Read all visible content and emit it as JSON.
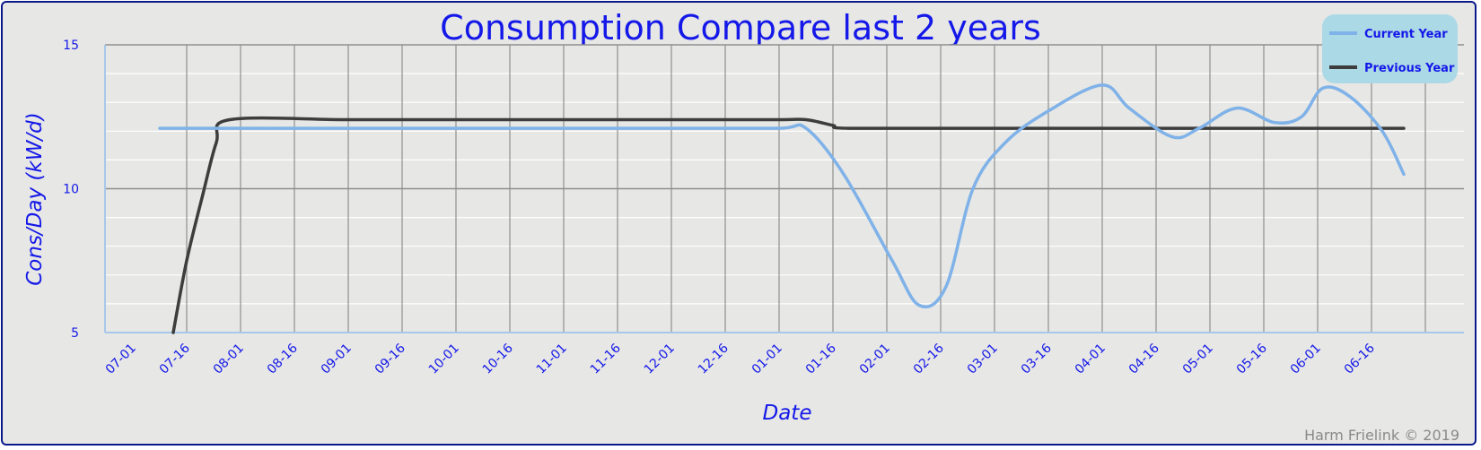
{
  "chart_data": {
    "type": "line",
    "title": "Consumption Compare last 2 years",
    "xlabel": "Date",
    "ylabel": "Cons/Day (kW/d)",
    "credit": "Harm Frielink © 2019",
    "ylim": [
      5,
      15
    ],
    "yticks": [
      5,
      10,
      15
    ],
    "xlim": [
      0,
      24.0
    ],
    "xticks": [
      "07-01",
      "07-16",
      "08-01",
      "08-16",
      "09-01",
      "09-16",
      "10-01",
      "10-16",
      "11-01",
      "11-16",
      "12-01",
      "12-16",
      "01-01",
      "01-16",
      "02-01",
      "02-16",
      "03-01",
      "03-16",
      "04-01",
      "04-16",
      "05-01",
      "05-16",
      "06-01",
      "06-16"
    ],
    "grid": true,
    "legend": "top-right",
    "series": [
      {
        "name": "Current Year",
        "color": "#7fb2e8",
        "x": [
          0.5,
          2,
          4,
          6,
          8,
          10,
          12,
          12.5,
          13.2,
          14.1,
          14.6,
          15.1,
          15.6,
          16.2,
          17.0,
          18.0,
          18.5,
          19.3,
          19.8,
          20.5,
          21.2,
          21.7,
          22.1,
          22.6,
          23.2,
          23.6
        ],
        "y": [
          12.1,
          12.1,
          12.1,
          12.1,
          12.1,
          12.1,
          12.1,
          12.1,
          10.5,
          7.5,
          5.95,
          6.6,
          10.0,
          11.6,
          12.7,
          13.6,
          12.8,
          11.8,
          12.1,
          12.8,
          12.3,
          12.5,
          13.5,
          13.2,
          12.0,
          10.5
        ]
      },
      {
        "name": "Previous Year",
        "color": "#3d3d3d",
        "x": [
          0.75,
          1.0,
          1.3,
          1.55,
          1.8,
          4,
          6,
          8,
          10,
          12,
          12.5,
          13.0,
          13.3,
          16,
          20,
          23.6
        ],
        "y": [
          5.0,
          7.5,
          9.8,
          11.6,
          12.4,
          12.4,
          12.4,
          12.4,
          12.4,
          12.4,
          12.4,
          12.2,
          12.1,
          12.1,
          12.1,
          12.1
        ]
      }
    ]
  }
}
